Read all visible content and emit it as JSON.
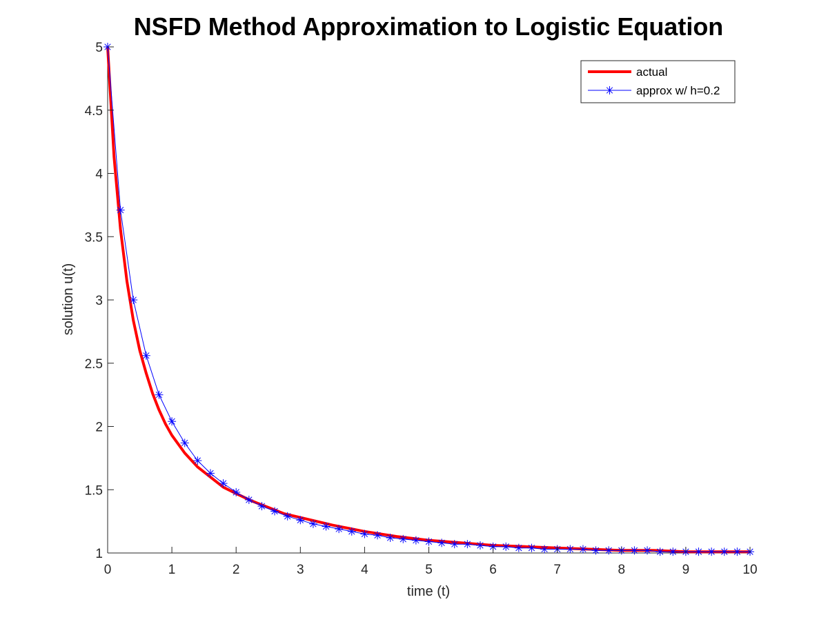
{
  "chart_data": {
    "type": "line",
    "title": "NSFD Method Approximation to Logistic Equation",
    "xlabel": "time (t)",
    "ylabel": "solution u(t)",
    "xlim": [
      0,
      10
    ],
    "ylim": [
      1,
      5
    ],
    "xticks": [
      0,
      1,
      2,
      3,
      4,
      5,
      6,
      7,
      8,
      9,
      10
    ],
    "xtick_labels": [
      "0",
      "1",
      "2",
      "3",
      "4",
      "5",
      "6",
      "7",
      "8",
      "9",
      "10"
    ],
    "yticks": [
      1,
      1.5,
      2,
      2.5,
      3,
      3.5,
      4,
      4.5,
      5
    ],
    "ytick_labels": [
      "1",
      "1.5",
      "2",
      "2.5",
      "3",
      "3.5",
      "4",
      "4.5",
      "5"
    ],
    "grid": false,
    "legend_position": "top-right",
    "series": [
      {
        "name": "actual",
        "color": "#ff0000",
        "style": "solid-thick",
        "marker": "none",
        "x": [
          0,
          0.1,
          0.2,
          0.3,
          0.4,
          0.5,
          0.6,
          0.7,
          0.8,
          0.9,
          1,
          1.2,
          1.4,
          1.6,
          1.8,
          2,
          2.25,
          2.5,
          2.75,
          3,
          3.5,
          4,
          4.5,
          5,
          5.5,
          6,
          6.5,
          7,
          7.5,
          8,
          8.5,
          9,
          9.5,
          10
        ],
        "y": [
          5,
          4.13,
          3.56,
          3.15,
          2.84,
          2.6,
          2.42,
          2.26,
          2.13,
          2.02,
          1.93,
          1.79,
          1.68,
          1.6,
          1.52,
          1.47,
          1.41,
          1.36,
          1.31,
          1.28,
          1.22,
          1.17,
          1.13,
          1.1,
          1.08,
          1.06,
          1.05,
          1.04,
          1.03,
          1.02,
          1.02,
          1.01,
          1.01,
          1.01
        ]
      },
      {
        "name": "approx w/ h=0.2",
        "color": "#0000ff",
        "style": "solid-thin",
        "marker": "asterisk",
        "x": [
          0,
          0.2,
          0.4,
          0.6,
          0.8,
          1.0,
          1.2,
          1.4,
          1.6,
          1.8,
          2.0,
          2.2,
          2.4,
          2.6,
          2.8,
          3.0,
          3.2,
          3.4,
          3.6,
          3.8,
          4.0,
          4.2,
          4.4,
          4.6,
          4.8,
          5.0,
          5.2,
          5.4,
          5.6,
          5.8,
          6.0,
          6.2,
          6.4,
          6.6,
          6.8,
          7.0,
          7.2,
          7.4,
          7.6,
          7.8,
          8.0,
          8.2,
          8.4,
          8.6,
          8.8,
          9.0,
          9.2,
          9.4,
          9.6,
          9.8,
          10.0
        ],
        "y": [
          5,
          3.71,
          3.0,
          2.56,
          2.25,
          2.04,
          1.87,
          1.73,
          1.63,
          1.55,
          1.48,
          1.42,
          1.37,
          1.33,
          1.29,
          1.26,
          1.23,
          1.21,
          1.19,
          1.17,
          1.15,
          1.14,
          1.12,
          1.11,
          1.1,
          1.09,
          1.08,
          1.07,
          1.07,
          1.06,
          1.05,
          1.05,
          1.04,
          1.04,
          1.03,
          1.03,
          1.03,
          1.03,
          1.02,
          1.02,
          1.02,
          1.02,
          1.02,
          1.01,
          1.01,
          1.01,
          1.01,
          1.01,
          1.01,
          1.01,
          1.01
        ]
      }
    ]
  }
}
